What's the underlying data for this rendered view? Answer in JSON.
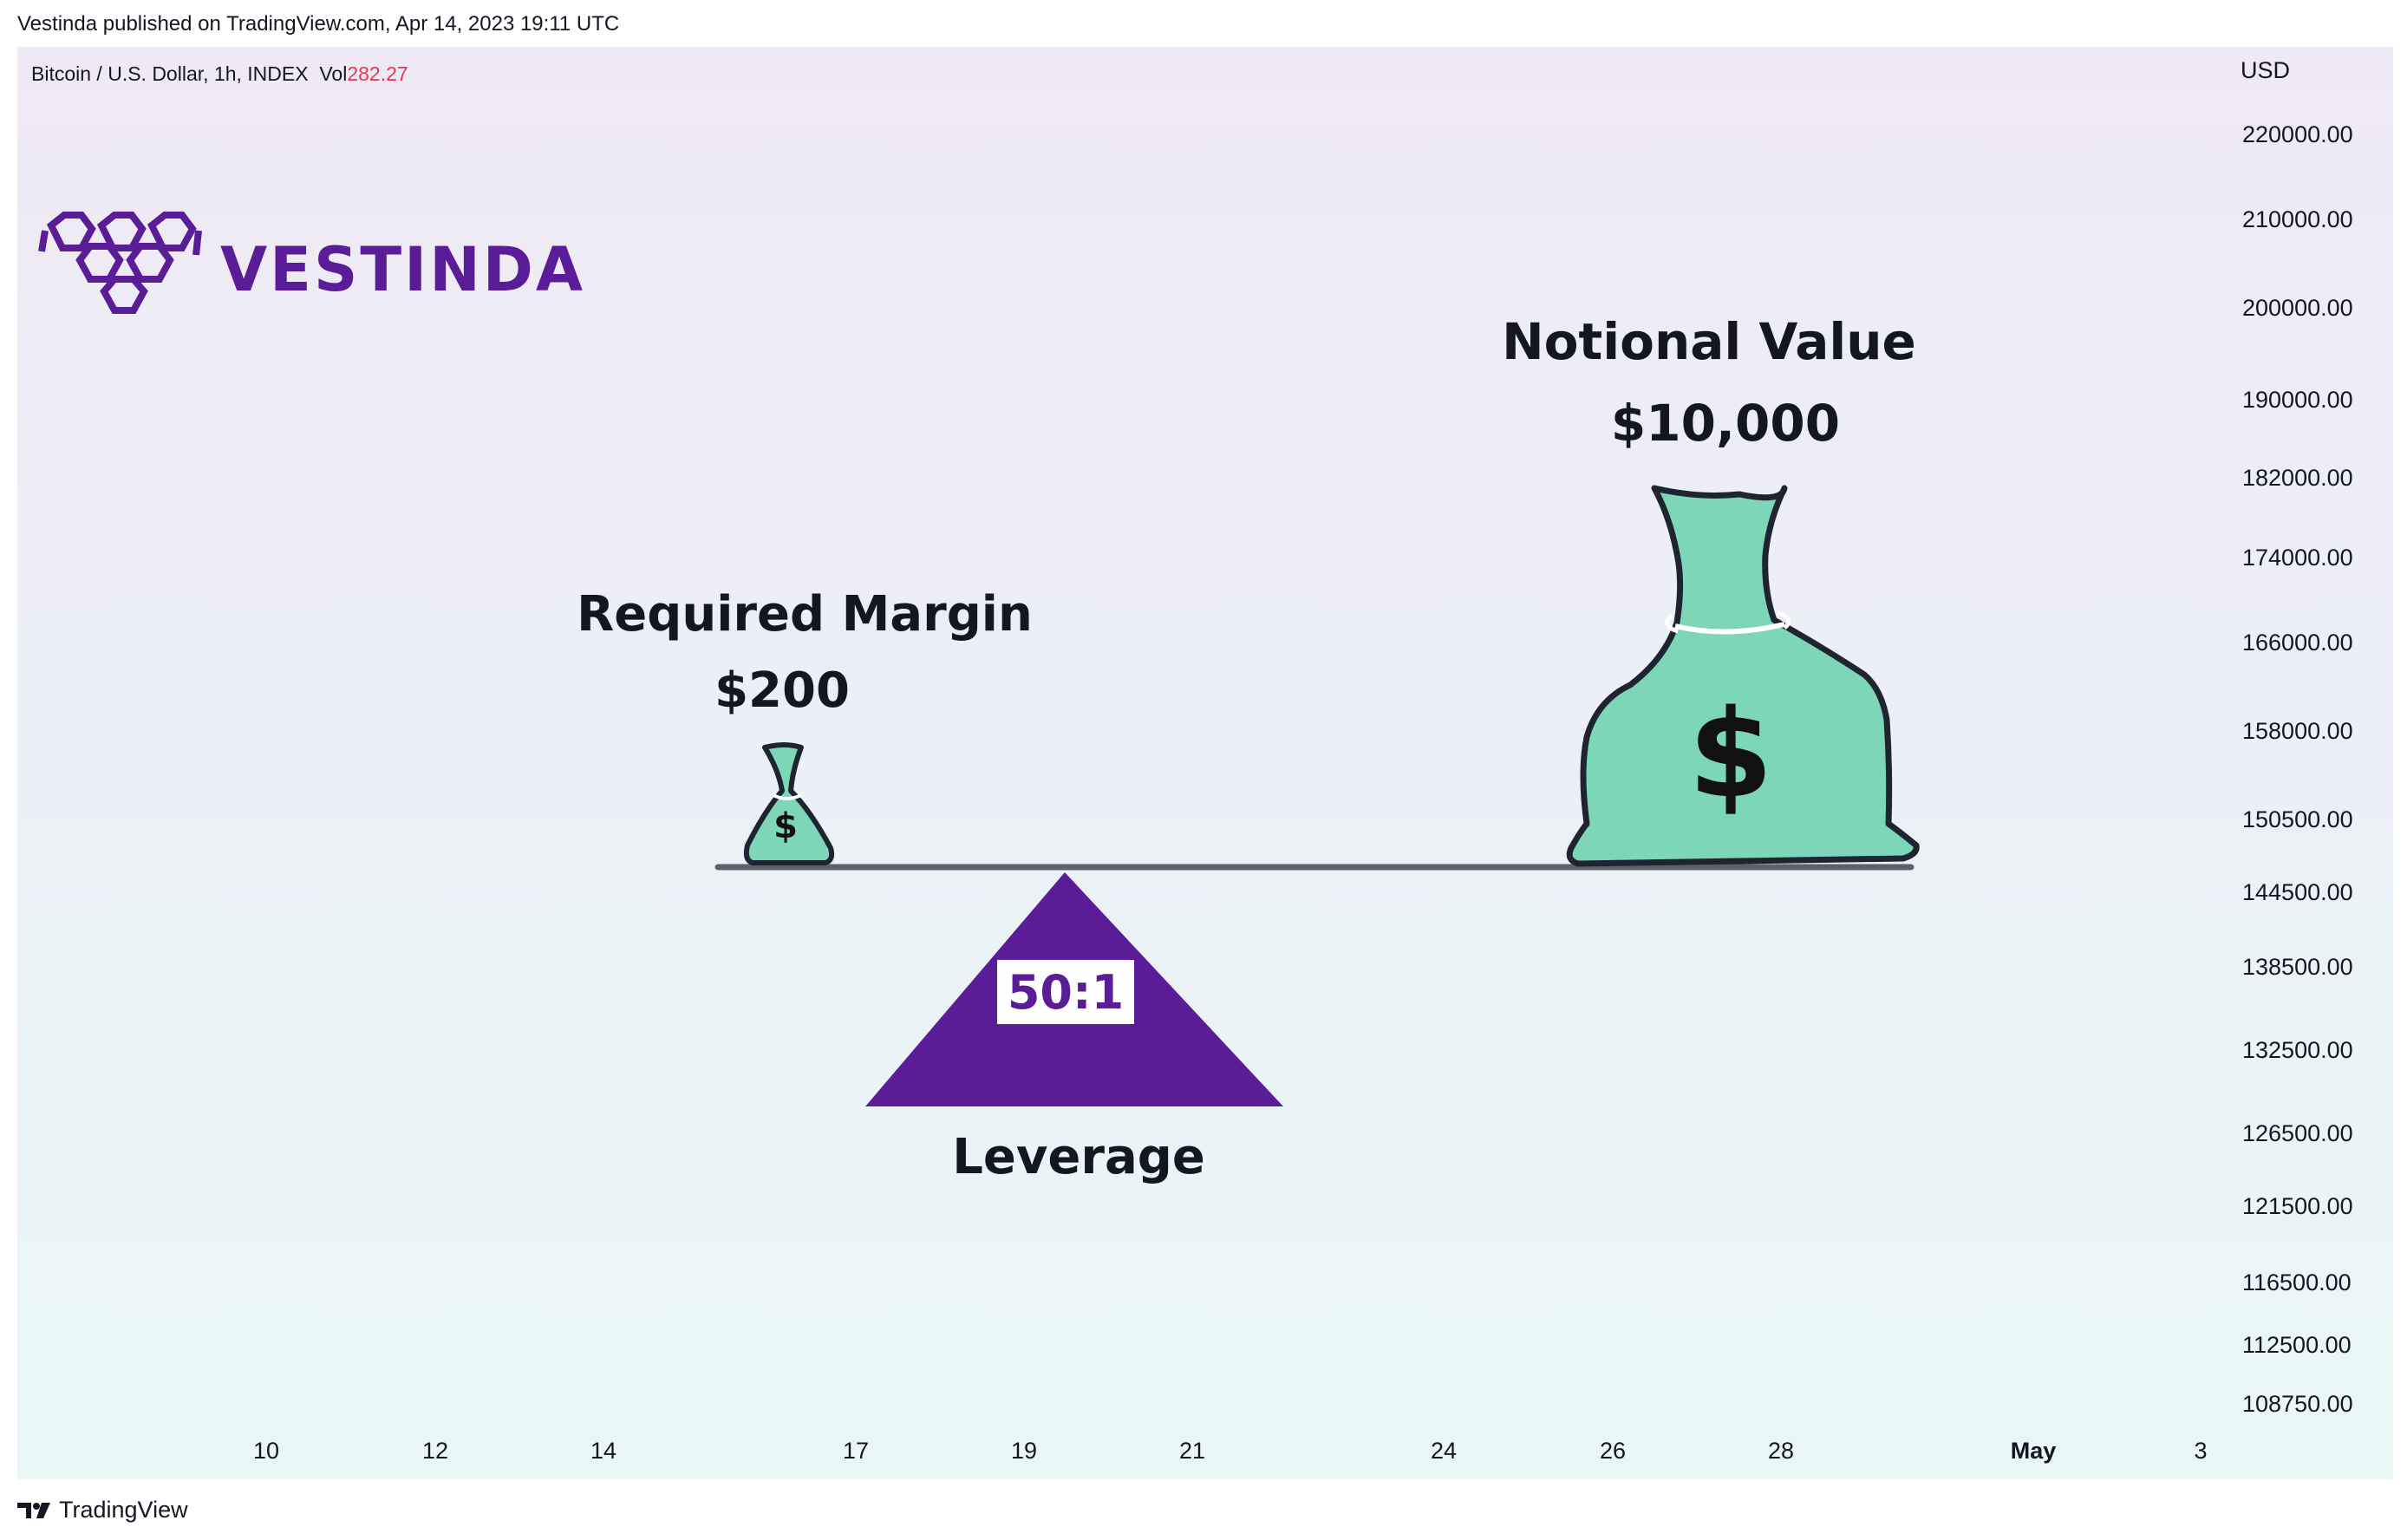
{
  "publication": "Vestinda published on TradingView.com, Apr 14, 2023 19:11 UTC",
  "symbol": {
    "description": "Bitcoin / U.S. Dollar, 1h, INDEX",
    "vol_label": "Vol",
    "vol_value": "282.27"
  },
  "price_axis": {
    "currency": "USD",
    "labels": [
      "220000.00",
      "210000.00",
      "200000.00",
      "190000.00",
      "182000.00",
      "174000.00",
      "166000.00",
      "158000.00",
      "150500.00",
      "144500.00",
      "138500.00",
      "132500.00",
      "126500.00",
      "121500.00",
      "116500.00",
      "112500.00",
      "108750.00"
    ]
  },
  "time_axis": {
    "labels": [
      "10",
      "12",
      "14",
      "17",
      "19",
      "21",
      "24",
      "26",
      "28",
      "May",
      "3"
    ]
  },
  "logo": {
    "text": "VESTINDA"
  },
  "illustration": {
    "notional_title": "Notional Value",
    "notional_amount": "$10,000",
    "margin_title": "Required Margin",
    "margin_amount": "$200",
    "ratio": "50:1",
    "leverage_label": "Leverage",
    "dollar_sign": "$",
    "colors": {
      "bag": "#7ed6b8",
      "purple": "#5b1d97",
      "outline": "#1f2530"
    }
  },
  "footer": {
    "brand": "TradingView"
  }
}
